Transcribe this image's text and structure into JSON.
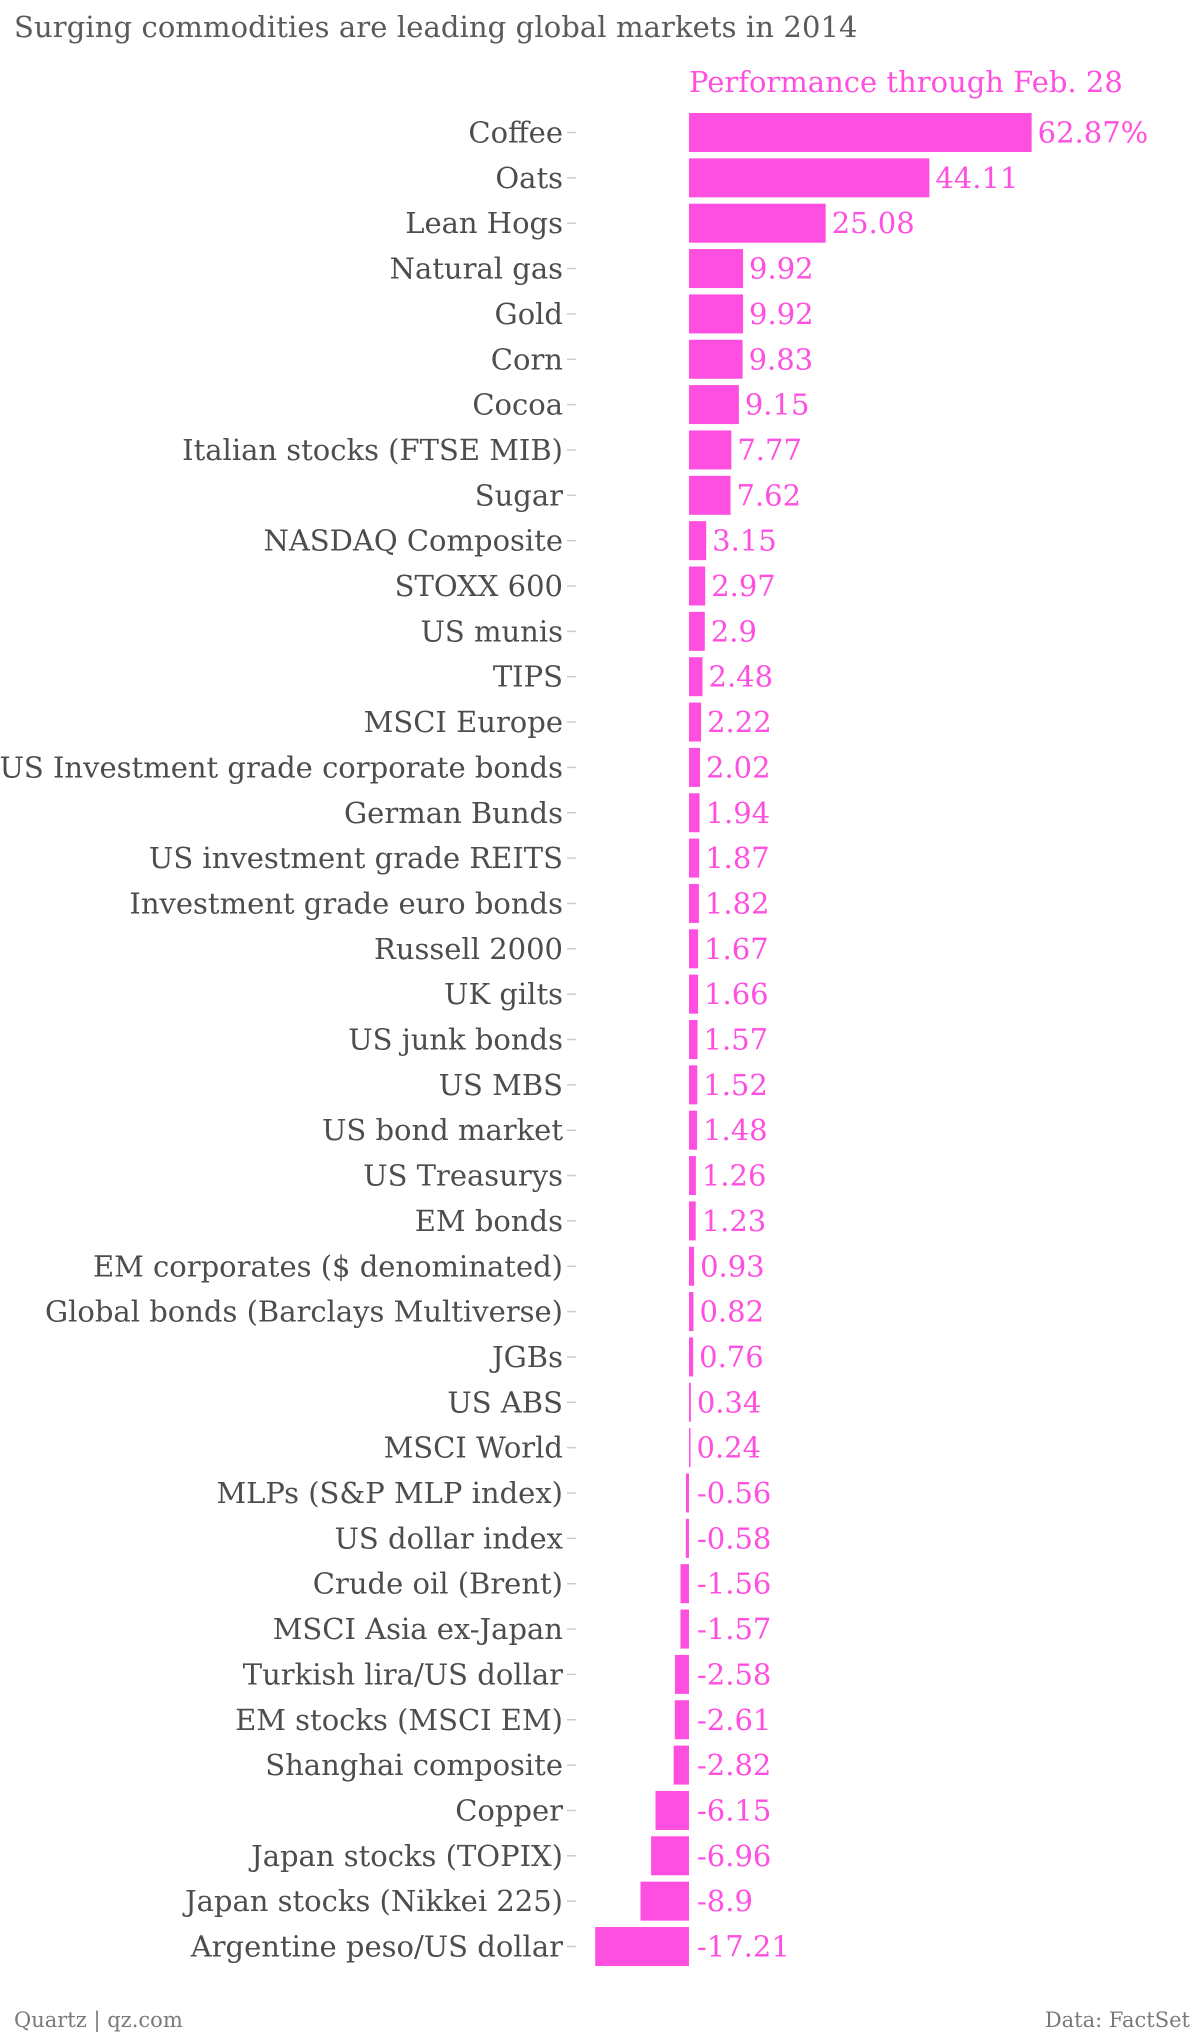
{
  "title": "Surging commodities are leading global markets in 2014",
  "footer": {
    "source_left": "Quartz | qz.com",
    "source_right": "Data: FactSet"
  },
  "colors": {
    "bar": "#ff4fe0",
    "text": "#4d4d4d",
    "tick": "#cccccc"
  },
  "chart_data": {
    "type": "bar",
    "orientation": "horizontal",
    "title": "Surging commodities are leading global markets in 2014",
    "series": [
      {
        "name": "Performance through Feb. 28",
        "values": [
          62.87,
          44.11,
          25.08,
          9.92,
          9.92,
          9.83,
          9.15,
          7.77,
          7.62,
          3.15,
          2.97,
          2.9,
          2.48,
          2.22,
          2.02,
          1.94,
          1.87,
          1.82,
          1.67,
          1.66,
          1.57,
          1.52,
          1.48,
          1.26,
          1.23,
          0.93,
          0.82,
          0.76,
          0.34,
          0.24,
          -0.56,
          -0.58,
          -1.56,
          -1.57,
          -2.58,
          -2.61,
          -2.82,
          -6.15,
          -6.96,
          -8.9,
          -17.21
        ]
      }
    ],
    "categories": [
      "Coffee",
      "Oats",
      "Lean Hogs",
      "Natural gas",
      "Gold",
      "Corn",
      "Cocoa",
      "Italian stocks (FTSE MIB)",
      "Sugar",
      "NASDAQ Composite",
      "STOXX 600",
      "US munis",
      "TIPS",
      "MSCI Europe",
      "US Investment grade corporate bonds",
      "German Bunds",
      "US investment grade REITS",
      "Investment grade euro bonds",
      "Russell 2000",
      "UK gilts",
      "US junk bonds",
      "US MBS",
      "US bond market",
      "US Treasurys",
      "EM bonds",
      "EM corporates ($ denominated)",
      "Global bonds (Barclays Multiverse)",
      "JGBs",
      "US ABS",
      "MSCI World",
      "MLPs (S&P MLP index)",
      "US dollar index",
      "Crude oil (Brent)",
      "MSCI Asia ex-Japan",
      "Turkish lira/US dollar",
      "EM stocks (MSCI EM)",
      "Shanghai composite",
      "Copper",
      "Japan stocks (TOPIX)",
      "Japan stocks (Nikkei 225)",
      "Argentine peso/US dollar"
    ],
    "value_labels": [
      "62.87%",
      "44.11",
      "25.08",
      "9.92",
      "9.92",
      "9.83",
      "9.15",
      "7.77",
      "7.62",
      "3.15",
      "2.97",
      "2.9",
      "2.48",
      "2.22",
      "2.02",
      "1.94",
      "1.87",
      "1.82",
      "1.67",
      "1.66",
      "1.57",
      "1.52",
      "1.48",
      "1.26",
      "1.23",
      "0.93",
      "0.82",
      "0.76",
      "0.34",
      "0.24",
      "-0.56",
      "-0.58",
      "-1.56",
      "-1.57",
      "-2.58",
      "-2.61",
      "-2.82",
      "-6.15",
      "-6.96",
      "-8.9",
      "-17.21"
    ],
    "legend": "top",
    "grid": false
  }
}
